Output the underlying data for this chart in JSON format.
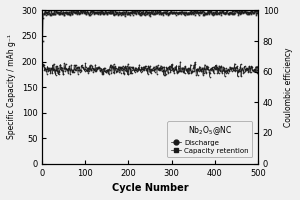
{
  "title": "",
  "xlabel": "Cycle Number",
  "ylabel_left": "Specific Capacity / mAh g⁻¹",
  "ylabel_right": "Coulombic efficiency",
  "xlim": [
    0,
    500
  ],
  "ylim_left": [
    0,
    300
  ],
  "ylim_right": [
    0,
    100
  ],
  "yticks_left": [
    0,
    50,
    100,
    150,
    200,
    250,
    300
  ],
  "yticks_right": [
    0,
    20,
    40,
    60,
    80,
    100
  ],
  "xticks": [
    0,
    100,
    200,
    300,
    400,
    500
  ],
  "discharge_mean": 185,
  "discharge_noise": 5,
  "retention_mean": 98.5,
  "retention_noise": 0.8,
  "n_points": 500,
  "line_color": "#1a1a1a",
  "bg_color": "#f0f0f0",
  "marker_circle": "o",
  "marker_square": "s",
  "legend_title": "Nb$_2$O$_5$@NC",
  "legend_discharge": "Discharge",
  "legend_retention": "Capacity retention"
}
